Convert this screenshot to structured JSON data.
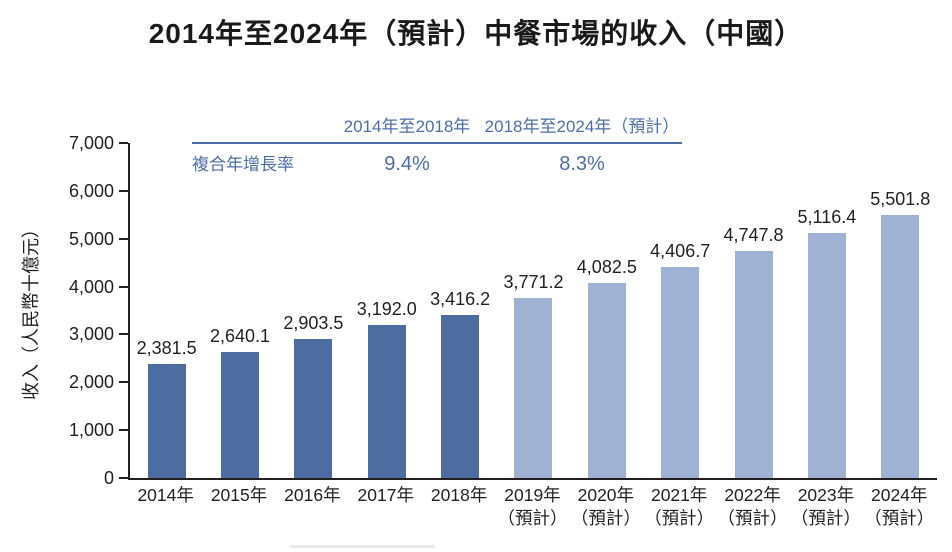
{
  "title": "2014年至2024年（預計）中餐市場的收入（中國）",
  "cagr": {
    "row_label": "複合年增長率",
    "periods": [
      {
        "label": "2014年至2018年",
        "value": "9.4%"
      },
      {
        "label": "2018年至2024年（預計）",
        "value": "8.3%"
      }
    ]
  },
  "chart_data": {
    "type": "bar",
    "title": "2014年至2024年（預計）中餐市場的收入（中國）",
    "xlabel": "",
    "ylabel": "收入（人民幣十億元）",
    "ylim": [
      0,
      7000
    ],
    "yticks": [
      0,
      1000,
      2000,
      3000,
      4000,
      5000,
      6000,
      7000
    ],
    "grid": false,
    "legend": "none",
    "categories": [
      {
        "year": "2014年",
        "suffix": ""
      },
      {
        "year": "2015年",
        "suffix": ""
      },
      {
        "year": "2016年",
        "suffix": ""
      },
      {
        "year": "2017年",
        "suffix": ""
      },
      {
        "year": "2018年",
        "suffix": ""
      },
      {
        "year": "2019年",
        "suffix": "（預計）"
      },
      {
        "year": "2020年",
        "suffix": "（預計）"
      },
      {
        "year": "2021年",
        "suffix": "（預計）"
      },
      {
        "year": "2022年",
        "suffix": "（預計）"
      },
      {
        "year": "2023年",
        "suffix": "（預計）"
      },
      {
        "year": "2024年",
        "suffix": "（預計）"
      }
    ],
    "values": [
      2381.5,
      2640.1,
      2903.5,
      3192.0,
      3416.2,
      3771.2,
      4082.5,
      4406.7,
      4747.8,
      5116.4,
      5501.8
    ],
    "value_labels": [
      "2,381.5",
      "2,640.1",
      "2,903.5",
      "3,192.0",
      "3,416.2",
      "3,771.2",
      "4,082.5",
      "4,406.7",
      "4,747.8",
      "5,116.4",
      "5,501.8"
    ],
    "actual_count": 5,
    "colors": {
      "actual": "#4d6da0",
      "forecast": "#9fb2d3",
      "accent_text": "#4c6ea8",
      "axis": "#231f20"
    }
  }
}
